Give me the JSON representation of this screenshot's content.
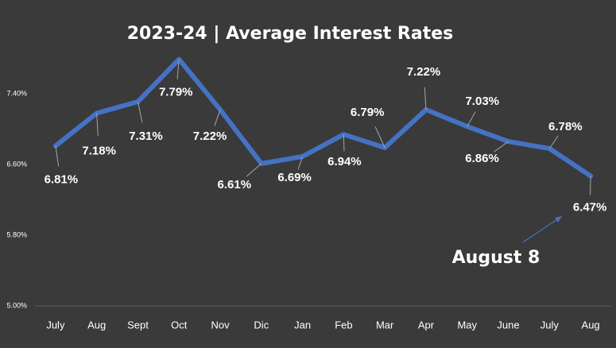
{
  "chart_data": {
    "type": "line",
    "title": "2023-24 | Average Interest Rates",
    "categories": [
      "July",
      "Aug",
      "Sept",
      "Oct",
      "Nov",
      "Dic",
      "Jan",
      "Feb",
      "Mar",
      "Apr",
      "May",
      "June",
      "July",
      "Aug"
    ],
    "series": [
      {
        "name": "Average Interest Rate",
        "color": "#4472c4",
        "values": [
          6.81,
          7.18,
          7.31,
          7.79,
          7.22,
          6.61,
          6.69,
          6.94,
          6.79,
          7.22,
          7.03,
          6.86,
          6.78,
          6.47
        ],
        "value_labels": [
          "6.81%",
          "7.18%",
          "7.31%",
          "7.79%",
          "7.22%",
          "6.61%",
          "6.69%",
          "6.94%",
          "6.79%",
          "7.22%",
          "7.03%",
          "6.86%",
          "6.78%",
          "6.47%"
        ]
      }
    ],
    "ylim": [
      5.0,
      8.2
    ],
    "yticks": [
      {
        "value": 5.0,
        "label": "5.00%"
      },
      {
        "value": 5.8,
        "label": "5.80%"
      },
      {
        "value": 6.6,
        "label": "6.60%"
      },
      {
        "value": 7.4,
        "label": "7.40%"
      }
    ],
    "grid": false,
    "annotation": "August 8"
  }
}
